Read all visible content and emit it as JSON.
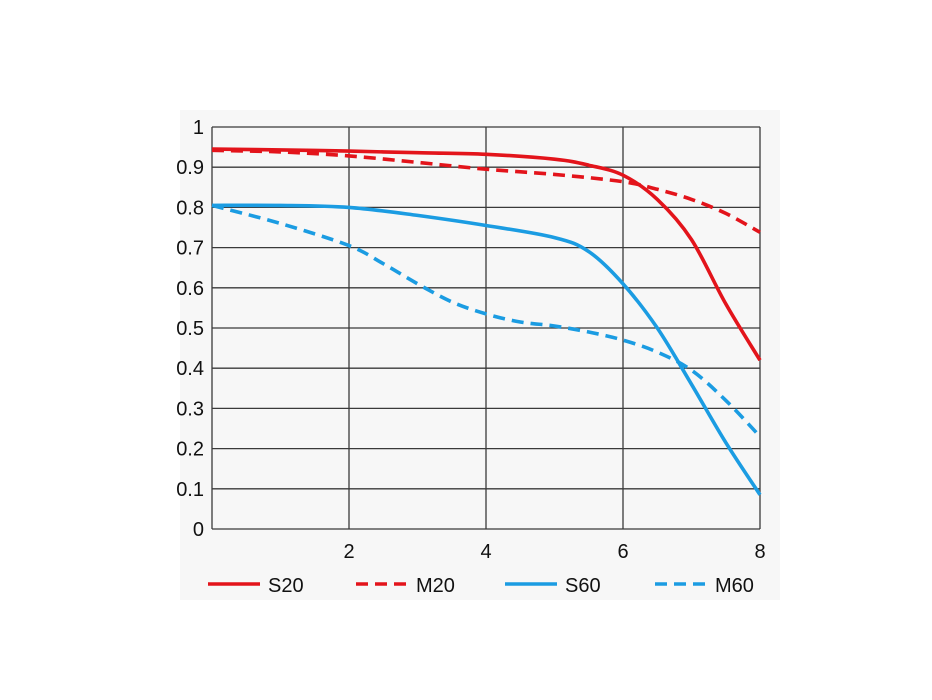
{
  "chart_data": {
    "type": "line",
    "xlim": [
      0,
      8
    ],
    "ylim": [
      0,
      1
    ],
    "grid": true,
    "legend_placement": "bottom",
    "x_ticks": [
      "2",
      "4",
      "6",
      "8"
    ],
    "y_ticks": [
      "0",
      "0.1",
      "0.2",
      "0.3",
      "0.4",
      "0.5",
      "0.6",
      "0.7",
      "0.8",
      "0.9",
      "1"
    ],
    "series": [
      {
        "name": "S20",
        "color": "#e3141b",
        "style": "solid",
        "points": [
          [
            0,
            0.945
          ],
          [
            1,
            0.943
          ],
          [
            2,
            0.94
          ],
          [
            3,
            0.936
          ],
          [
            4,
            0.932
          ],
          [
            5,
            0.92
          ],
          [
            5.5,
            0.905
          ],
          [
            6,
            0.88
          ],
          [
            6.5,
            0.82
          ],
          [
            7,
            0.72
          ],
          [
            7.5,
            0.56
          ],
          [
            8,
            0.42
          ]
        ]
      },
      {
        "name": "M20",
        "color": "#e3141b",
        "style": "dashed",
        "points": [
          [
            0,
            0.942
          ],
          [
            1,
            0.938
          ],
          [
            2,
            0.928
          ],
          [
            3,
            0.912
          ],
          [
            4,
            0.895
          ],
          [
            5,
            0.882
          ],
          [
            6,
            0.864
          ],
          [
            6.5,
            0.845
          ],
          [
            7,
            0.82
          ],
          [
            7.5,
            0.785
          ],
          [
            8,
            0.738
          ]
        ]
      },
      {
        "name": "S60",
        "color": "#1b9ce2",
        "style": "solid",
        "points": [
          [
            0,
            0.805
          ],
          [
            1,
            0.805
          ],
          [
            2,
            0.8
          ],
          [
            3,
            0.78
          ],
          [
            4,
            0.755
          ],
          [
            5,
            0.725
          ],
          [
            5.5,
            0.69
          ],
          [
            6,
            0.61
          ],
          [
            6.5,
            0.5
          ],
          [
            7,
            0.36
          ],
          [
            7.5,
            0.215
          ],
          [
            8,
            0.085
          ]
        ]
      },
      {
        "name": "M60",
        "color": "#1b9ce2",
        "style": "dashed",
        "points": [
          [
            0,
            0.805
          ],
          [
            1,
            0.76
          ],
          [
            2,
            0.705
          ],
          [
            2.5,
            0.66
          ],
          [
            3,
            0.61
          ],
          [
            3.5,
            0.565
          ],
          [
            4,
            0.535
          ],
          [
            4.5,
            0.515
          ],
          [
            5,
            0.505
          ],
          [
            5.5,
            0.49
          ],
          [
            6,
            0.47
          ],
          [
            6.5,
            0.44
          ],
          [
            7,
            0.395
          ],
          [
            7.5,
            0.32
          ],
          [
            8,
            0.23
          ]
        ]
      }
    ]
  }
}
